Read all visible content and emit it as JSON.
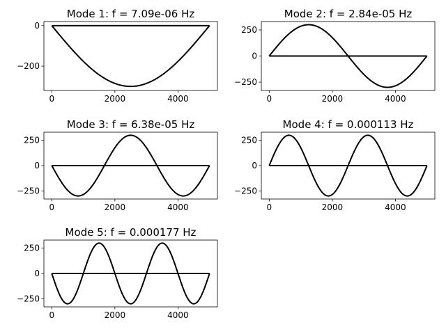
{
  "chart_data": [
    {
      "type": "line",
      "mode": 1,
      "title": "Mode 1: f = 7.09e-06 Hz",
      "xlim": [
        -250,
        5250
      ],
      "ylim": [
        -320,
        20
      ],
      "xticks": [
        0,
        2000,
        4000
      ],
      "xtick_labels": [
        "0",
        "2000",
        "4000"
      ],
      "yticks": [
        0,
        -200
      ],
      "ytick_labels": [
        "0",
        "−200"
      ],
      "x_range": [
        0,
        5000
      ],
      "amplitude": 300,
      "half_waves": 1,
      "shape": "-A*sin(n*pi*x/L)",
      "series": [
        {
          "x": [
            0,
            500,
            1000,
            1500,
            2000,
            2500,
            3000,
            3500,
            4000,
            4500,
            5000
          ],
          "y": [
            0,
            -93,
            -176,
            -243,
            -285,
            -300,
            -285,
            -243,
            -176,
            -93,
            0
          ]
        },
        {
          "x": [
            0,
            5000
          ],
          "y": [
            0,
            0
          ]
        }
      ],
      "line_color": "#000000",
      "grid": false
    },
    {
      "type": "line",
      "mode": 2,
      "title": "Mode 2: f = 2.84e-05 Hz",
      "xlim": [
        -250,
        5250
      ],
      "ylim": [
        -330,
        330
      ],
      "xticks": [
        0,
        2000,
        4000
      ],
      "xtick_labels": [
        "0",
        "2000",
        "4000"
      ],
      "yticks": [
        250,
        0,
        -250
      ],
      "ytick_labels": [
        "250",
        "0",
        "−250"
      ],
      "x_range": [
        0,
        5000
      ],
      "amplitude": 300,
      "half_waves": 2,
      "shape": "A*sin(n*pi*x/L)",
      "series": [
        {
          "x": [
            0,
            625,
            1250,
            1875,
            2500,
            3125,
            3750,
            4375,
            5000
          ],
          "y": [
            0,
            212,
            300,
            212,
            0,
            -212,
            -300,
            -212,
            0
          ]
        },
        {
          "x": [
            0,
            5000
          ],
          "y": [
            0,
            0
          ]
        }
      ],
      "line_color": "#000000",
      "grid": false
    },
    {
      "type": "line",
      "mode": 3,
      "title": "Mode 3: f = 6.38e-05 Hz",
      "xlim": [
        -250,
        5250
      ],
      "ylim": [
        -330,
        330
      ],
      "xticks": [
        0,
        2000,
        4000
      ],
      "xtick_labels": [
        "0",
        "2000",
        "4000"
      ],
      "yticks": [
        250,
        0,
        -250
      ],
      "ytick_labels": [
        "250",
        "0",
        "−250"
      ],
      "x_range": [
        0,
        5000
      ],
      "amplitude": 300,
      "half_waves": 3,
      "shape": "-A*sin(n*pi*x/L)",
      "series": [
        {
          "x": [
            0,
            833,
            1667,
            2500,
            3333,
            4167,
            5000
          ],
          "y": [
            0,
            -300,
            0,
            300,
            0,
            -300,
            0
          ]
        },
        {
          "x": [
            0,
            5000
          ],
          "y": [
            0,
            0
          ]
        }
      ],
      "line_color": "#000000",
      "grid": false
    },
    {
      "type": "line",
      "mode": 4,
      "title": "Mode 4: f = 0.000113 Hz",
      "xlim": [
        -250,
        5250
      ],
      "ylim": [
        -330,
        330
      ],
      "xticks": [
        0,
        2000,
        4000
      ],
      "xtick_labels": [
        "0",
        "2000",
        "4000"
      ],
      "yticks": [
        250,
        0,
        -250
      ],
      "ytick_labels": [
        "250",
        "0",
        "−250"
      ],
      "x_range": [
        0,
        5000
      ],
      "amplitude": 300,
      "half_waves": 4,
      "shape": "A*sin(n*pi*x/L)",
      "series": [
        {
          "x": [
            0,
            625,
            1250,
            1875,
            2500,
            3125,
            3750,
            4375,
            5000
          ],
          "y": [
            0,
            300,
            0,
            -300,
            0,
            300,
            0,
            -300,
            0
          ]
        },
        {
          "x": [
            0,
            5000
          ],
          "y": [
            0,
            0
          ]
        }
      ],
      "line_color": "#000000",
      "grid": false
    },
    {
      "type": "line",
      "mode": 5,
      "title": "Mode 5: f = 0.000177 Hz",
      "xlim": [
        -250,
        5250
      ],
      "ylim": [
        -330,
        330
      ],
      "xticks": [
        0,
        2000,
        4000
      ],
      "xtick_labels": [
        "0",
        "2000",
        "4000"
      ],
      "yticks": [
        250,
        0,
        -250
      ],
      "ytick_labels": [
        "250",
        "0",
        "−250"
      ],
      "x_range": [
        0,
        5000
      ],
      "amplitude": 300,
      "half_waves": 5,
      "shape": "-A*sin(n*pi*x/L)",
      "series": [
        {
          "x": [
            0,
            500,
            1000,
            1500,
            2000,
            2500,
            3000,
            3500,
            4000,
            4500,
            5000
          ],
          "y": [
            0,
            -300,
            0,
            300,
            0,
            -300,
            0,
            300,
            0,
            -300,
            0
          ]
        },
        {
          "x": [
            0,
            5000
          ],
          "y": [
            0,
            0
          ]
        }
      ],
      "line_color": "#000000",
      "grid": false
    }
  ]
}
